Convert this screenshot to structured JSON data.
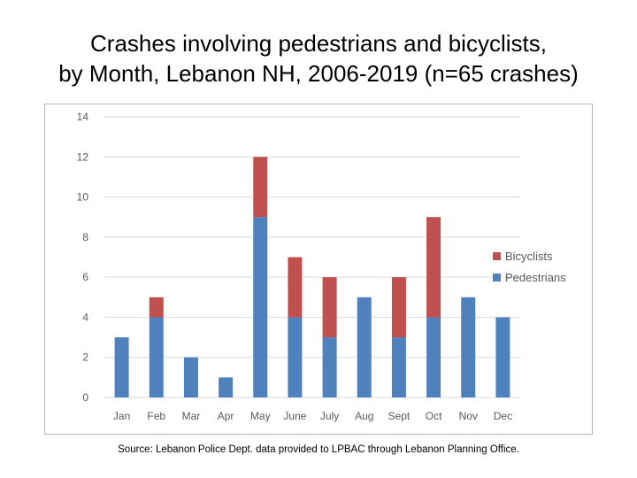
{
  "title": {
    "line1": "Crashes involving pedestrians and bicyclists,",
    "line2": "by Month, Lebanon NH, 2006-2019 (n=65 crashes)"
  },
  "source": "Source: Lebanon Police Dept. data provided to LPBAC through Lebanon Planning Office.",
  "colors": {
    "pedestrians": "#4f81bd",
    "bicyclists": "#c0504d",
    "gridline": "#d9d9d9",
    "axis_text": "#595959"
  },
  "chart_data": {
    "type": "bar",
    "stacked": true,
    "title": "Crashes involving pedestrians and bicyclists, by Month, Lebanon NH, 2006-2019 (n=65 crashes)",
    "xlabel": "",
    "ylabel": "",
    "ylim": [
      0,
      14
    ],
    "yticks": [
      0,
      2,
      4,
      6,
      8,
      10,
      12,
      14
    ],
    "grid": true,
    "legend_position": "right",
    "categories": [
      "Jan",
      "Feb",
      "Mar",
      "Apr",
      "May",
      "June",
      "July",
      "Aug",
      "Sept",
      "Oct",
      "Nov",
      "Dec"
    ],
    "series": [
      {
        "name": "Pedestrians",
        "values": [
          3,
          4,
          2,
          1,
          9,
          4,
          3,
          5,
          3,
          4,
          5,
          4
        ]
      },
      {
        "name": "Bicyclists",
        "values": [
          0,
          1,
          0,
          0,
          3,
          3,
          3,
          0,
          3,
          5,
          0,
          0
        ]
      }
    ],
    "legend": [
      "Bicyclists",
      "Pedestrians"
    ]
  }
}
